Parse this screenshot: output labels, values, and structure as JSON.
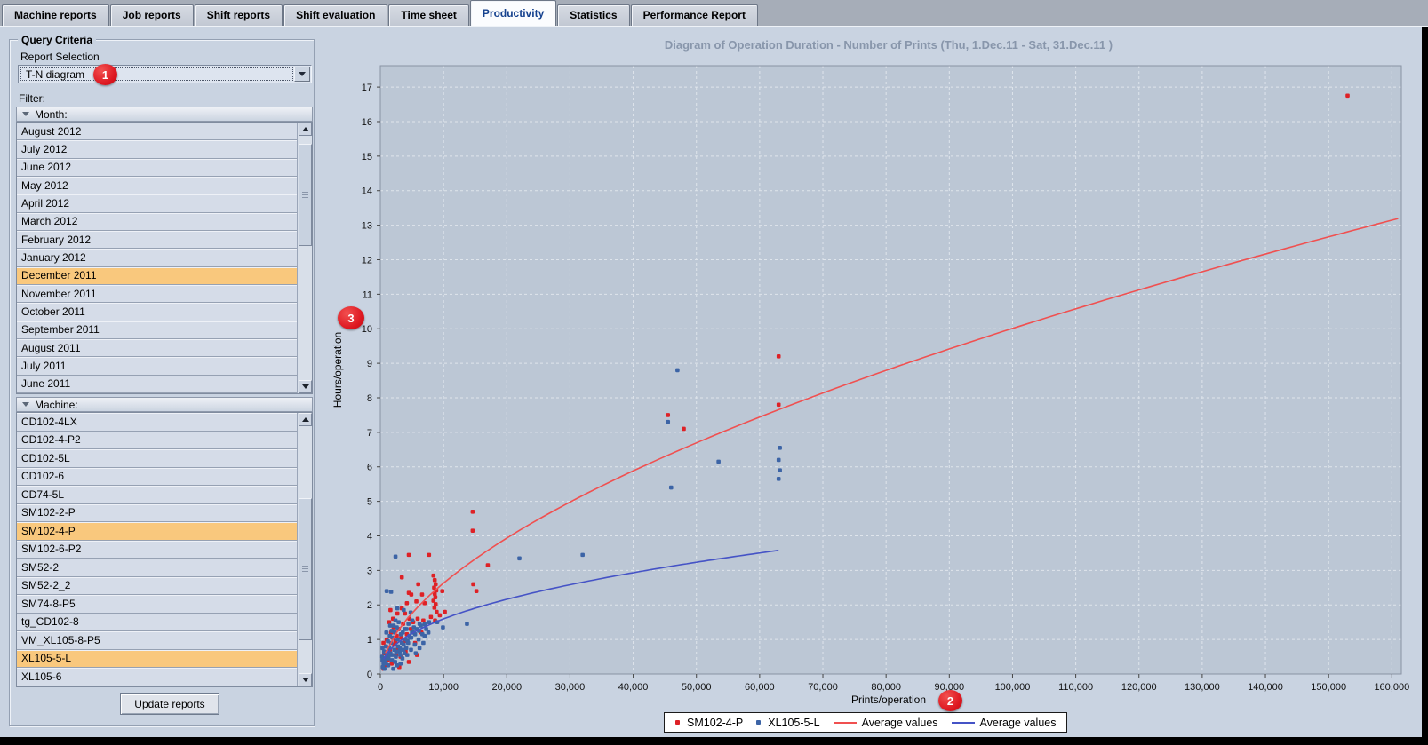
{
  "tabs": {
    "items": [
      {
        "label": "Machine reports",
        "active": false
      },
      {
        "label": "Job reports",
        "active": false
      },
      {
        "label": "Shift reports",
        "active": false
      },
      {
        "label": "Shift evaluation",
        "active": false
      },
      {
        "label": "Time sheet",
        "active": false
      },
      {
        "label": "Productivity",
        "active": true
      },
      {
        "label": "Statistics",
        "active": false
      },
      {
        "label": "Performance Report",
        "active": false
      }
    ]
  },
  "query_panel": {
    "title": "Query Criteria",
    "report_selection_label": "Report Selection",
    "report_selection_value": "T-N diagram",
    "filter_label": "Filter:",
    "month_section": {
      "label": "Month:",
      "items": [
        "August 2012",
        "July 2012",
        "June 2012",
        "May 2012",
        "April 2012",
        "March 2012",
        "February 2012",
        "January 2012",
        "December 2011",
        "November 2011",
        "October 2011",
        "September 2011",
        "August 2011",
        "July 2011",
        "June 2011"
      ],
      "selected": [
        "December 2011"
      ]
    },
    "machine_section": {
      "label": "Machine:",
      "items": [
        "CD102-4LX",
        "CD102-4-P2",
        "CD102-5L",
        "CD102-6",
        "CD74-5L",
        "SM102-2-P",
        "SM102-4-P",
        "SM102-6-P2",
        "SM52-2",
        "SM52-2_2",
        "SM74-8-P5",
        "tg_CD102-8",
        "VM_XL105-8-P5",
        "XL105-5-L",
        "XL105-6"
      ],
      "selected": [
        "SM102-4-P",
        "XL105-5-L"
      ]
    },
    "update_button_label": "Update reports"
  },
  "badges": {
    "one": "1",
    "two": "2",
    "three": "3"
  },
  "chart_data": {
    "type": "scatter",
    "title": "Diagram of Operation Duration - Number of Prints   (Thu, 1.Dec.11  - Sat, 31.Dec.11 )",
    "xlabel": "Prints/operation",
    "ylabel": "Hours/operation",
    "xlim": [
      0,
      160000
    ],
    "ylim": [
      0,
      17
    ],
    "grid": true,
    "legend_position": "bottom",
    "x_ticks": [
      0,
      10000,
      20000,
      30000,
      40000,
      50000,
      60000,
      70000,
      80000,
      90000,
      100000,
      110000,
      120000,
      130000,
      140000,
      150000,
      160000
    ],
    "y_ticks": [
      0,
      1,
      2,
      3,
      4,
      5,
      6,
      7,
      8,
      9,
      10,
      11,
      12,
      13,
      14,
      15,
      16,
      17
    ],
    "colors": {
      "plot_bg": "#bcc7d5",
      "grid": "#dfe5ec",
      "border": "#8993a4",
      "red_points": "#de2126",
      "blue_points": "#3c64a6",
      "red_curve": "#f05050",
      "blue_curve": "#4553c6"
    },
    "series": [
      {
        "name": "SM102-4-P",
        "type": "scatter",
        "color": "#de2126",
        "points": [
          [
            153000,
            16.75
          ],
          [
            63000,
            9.2
          ],
          [
            63000,
            7.8
          ],
          [
            45500,
            7.5
          ],
          [
            48000,
            7.1
          ],
          [
            14600,
            4.7
          ],
          [
            14600,
            4.15
          ],
          [
            17000,
            3.15
          ],
          [
            7700,
            3.45
          ],
          [
            4500,
            3.45
          ],
          [
            3400,
            2.8
          ],
          [
            14700,
            2.6
          ],
          [
            15200,
            2.4
          ],
          [
            6000,
            2.6
          ],
          [
            4500,
            2.35
          ],
          [
            4900,
            2.3
          ],
          [
            6600,
            2.3
          ],
          [
            9800,
            2.4
          ],
          [
            5700,
            2.1
          ],
          [
            7000,
            2.05
          ],
          [
            4200,
            2.05
          ],
          [
            8000,
            1.65
          ],
          [
            10200,
            1.8
          ],
          [
            5900,
            1.6
          ],
          [
            6800,
            1.55
          ],
          [
            9400,
            1.7
          ],
          [
            8400,
            2.85
          ],
          [
            8600,
            2.72
          ],
          [
            8750,
            2.6
          ],
          [
            8500,
            2.5
          ],
          [
            8850,
            2.42
          ],
          [
            8600,
            2.32
          ],
          [
            8700,
            2.22
          ],
          [
            8400,
            2.12
          ],
          [
            8750,
            2.02
          ],
          [
            8550,
            1.92
          ],
          [
            8900,
            1.8
          ],
          [
            8650,
            1.55
          ],
          [
            700,
            0.25
          ],
          [
            1200,
            0.4
          ],
          [
            1800,
            0.3
          ],
          [
            2500,
            0.55
          ],
          [
            3200,
            0.5
          ],
          [
            1500,
            0.7
          ],
          [
            2200,
            0.85
          ],
          [
            2800,
            0.75
          ],
          [
            3800,
            0.95
          ],
          [
            1000,
            1.0
          ],
          [
            1900,
            1.05
          ],
          [
            2600,
            1.1
          ],
          [
            3300,
            1.05
          ],
          [
            4200,
            1.15
          ],
          [
            4800,
            1.3
          ],
          [
            2100,
            1.35
          ],
          [
            1400,
            1.5
          ],
          [
            3600,
            1.45
          ],
          [
            5200,
            1.5
          ],
          [
            600,
            0.6
          ],
          [
            900,
            0.8
          ],
          [
            4000,
            0.65
          ],
          [
            5500,
            0.9
          ],
          [
            6500,
            1.2
          ],
          [
            500,
            0.15
          ],
          [
            3000,
            0.2
          ],
          [
            4500,
            0.35
          ],
          [
            5800,
            0.55
          ],
          [
            2000,
            1.6
          ],
          [
            2700,
            1.75
          ],
          [
            3400,
            1.9
          ],
          [
            1600,
            1.85
          ],
          [
            1100,
            0.55
          ],
          [
            2400,
            0.95
          ],
          [
            700,
            0.45
          ],
          [
            1700,
            1.2
          ],
          [
            2900,
            1.3
          ],
          [
            500,
            0.9
          ],
          [
            3900,
            1.75
          ],
          [
            4600,
            1.6
          ]
        ]
      },
      {
        "name": "XL105-5-L",
        "type": "scatter",
        "color": "#3c64a6",
        "points": [
          [
            47000,
            8.8
          ],
          [
            45500,
            7.3
          ],
          [
            63200,
            6.55
          ],
          [
            63000,
            6.2
          ],
          [
            63200,
            5.9
          ],
          [
            63000,
            5.65
          ],
          [
            53500,
            6.15
          ],
          [
            46000,
            5.4
          ],
          [
            22000,
            3.35
          ],
          [
            32000,
            3.45
          ],
          [
            2400,
            3.4
          ],
          [
            1000,
            2.4
          ],
          [
            1700,
            2.38
          ],
          [
            2700,
            1.9
          ],
          [
            3700,
            1.85
          ],
          [
            4800,
            1.78
          ],
          [
            6200,
            1.45
          ],
          [
            7000,
            1.44
          ],
          [
            7700,
            1.5
          ],
          [
            9000,
            1.5
          ],
          [
            9900,
            1.35
          ],
          [
            13700,
            1.45
          ],
          [
            400,
            0.2
          ],
          [
            700,
            0.35
          ],
          [
            1000,
            0.5
          ],
          [
            1300,
            0.45
          ],
          [
            1600,
            0.6
          ],
          [
            1900,
            0.55
          ],
          [
            2200,
            0.7
          ],
          [
            2500,
            0.65
          ],
          [
            2800,
            0.8
          ],
          [
            3100,
            0.75
          ],
          [
            3400,
            0.9
          ],
          [
            3700,
            0.85
          ],
          [
            4000,
            1.0
          ],
          [
            4300,
            0.95
          ],
          [
            4600,
            1.1
          ],
          [
            4900,
            1.05
          ],
          [
            5200,
            1.2
          ],
          [
            5500,
            1.15
          ],
          [
            5800,
            1.3
          ],
          [
            6100,
            1.25
          ],
          [
            6400,
            1.4
          ],
          [
            300,
            0.5
          ],
          [
            600,
            0.65
          ],
          [
            900,
            0.8
          ],
          [
            1200,
            0.95
          ],
          [
            1500,
            1.1
          ],
          [
            1800,
            1.25
          ],
          [
            2100,
            1.4
          ],
          [
            2400,
            1.55
          ],
          [
            500,
            0.3
          ],
          [
            800,
            0.45
          ],
          [
            1100,
            0.6
          ],
          [
            1400,
            0.75
          ],
          [
            1700,
            0.9
          ],
          [
            2000,
            1.05
          ],
          [
            2300,
            1.2
          ],
          [
            2600,
            1.35
          ],
          [
            2900,
            1.5
          ],
          [
            3200,
            0.3
          ],
          [
            3500,
            0.45
          ],
          [
            3800,
            0.6
          ],
          [
            4100,
            0.75
          ],
          [
            4400,
            0.9
          ],
          [
            4700,
            1.05
          ],
          [
            5000,
            1.2
          ],
          [
            5300,
            1.35
          ],
          [
            650,
            0.15
          ],
          [
            1250,
            0.25
          ],
          [
            1850,
            0.4
          ],
          [
            2450,
            0.5
          ],
          [
            3050,
            0.65
          ],
          [
            3650,
            0.7
          ],
          [
            4250,
            0.55
          ],
          [
            4850,
            0.7
          ],
          [
            5450,
            0.85
          ],
          [
            6050,
            1.0
          ],
          [
            6650,
            1.15
          ],
          [
            7250,
            1.3
          ],
          [
            2050,
            0.15
          ],
          [
            2650,
            0.25
          ],
          [
            3250,
            1.15
          ],
          [
            3850,
            1.3
          ],
          [
            4450,
            1.45
          ],
          [
            5050,
            1.55
          ],
          [
            1550,
            1.4
          ],
          [
            950,
            1.2
          ],
          [
            350,
            0.75
          ],
          [
            7000,
            1.1
          ],
          [
            7600,
            1.2
          ],
          [
            6800,
            0.9
          ],
          [
            5600,
            0.6
          ],
          [
            6200,
            0.75
          ],
          [
            900,
            0.3
          ],
          [
            1450,
            0.55
          ],
          [
            2750,
            1.0
          ],
          [
            3550,
            1.2
          ],
          [
            350,
            0.4
          ],
          [
            4150,
            1.3
          ],
          [
            2350,
            0.35
          ],
          [
            3150,
            0.55
          ]
        ]
      },
      {
        "name": "Average values",
        "type": "line",
        "color": "#f05050",
        "curve": {
          "form": "power",
          "a": 0.0126,
          "b": 0.58,
          "x_start": 800,
          "x_end": 161000
        }
      },
      {
        "name": "Average values",
        "type": "line",
        "color": "#4553c6",
        "curve": {
          "form": "power",
          "a": 0.0277,
          "b": 0.44,
          "x_start": 500,
          "x_end": 63000
        }
      }
    ]
  }
}
